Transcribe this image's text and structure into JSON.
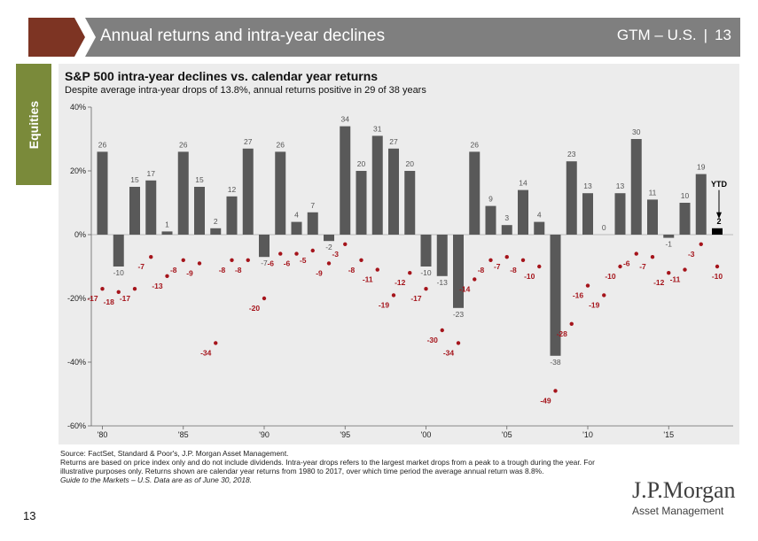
{
  "header": {
    "title": "Annual returns and intra-year declines",
    "code": "GTM – U.S.",
    "separator": "|",
    "page": "13"
  },
  "side_tab": {
    "label": "Equities"
  },
  "colors": {
    "bar": "#595959",
    "drawdown": "#a5141b",
    "header_bg": "#7f7f7f",
    "header_accent": "#7d3423",
    "tab": "#7a8a3a",
    "panel": "#ececec"
  },
  "chart_data": {
    "type": "bar",
    "title": "S&P 500 intra-year declines vs. calendar year returns",
    "subtitle": "Despite average intra-year drops of 13.8%, annual returns positive in 29 of 38 years",
    "years": [
      1980,
      1981,
      1982,
      1983,
      1984,
      1985,
      1986,
      1987,
      1988,
      1989,
      1990,
      1991,
      1992,
      1993,
      1994,
      1995,
      1996,
      1997,
      1998,
      1999,
      2000,
      2001,
      2002,
      2003,
      2004,
      2005,
      2006,
      2007,
      2008,
      2009,
      2010,
      2011,
      2012,
      2013,
      2014,
      2015,
      2016,
      2017
    ],
    "series": [
      {
        "name": "Calendar year return",
        "values": [
          26,
          -10,
          15,
          17,
          1,
          26,
          15,
          2,
          12,
          27,
          -7,
          26,
          4,
          7,
          -2,
          34,
          20,
          31,
          27,
          20,
          -10,
          -13,
          -23,
          26,
          9,
          3,
          14,
          4,
          -38,
          23,
          13,
          0,
          13,
          30,
          11,
          -1,
          10,
          19
        ]
      },
      {
        "name": "Intra-year decline",
        "values": [
          -17,
          -18,
          -17,
          -7,
          -13,
          -8,
          -9,
          -34,
          -8,
          -8,
          -20,
          -6,
          -6,
          -5,
          -9,
          -3,
          -8,
          -11,
          -19,
          -12,
          -17,
          -30,
          -34,
          -14,
          -8,
          -7,
          -8,
          -10,
          -49,
          -28,
          -16,
          -19,
          -10,
          -6,
          -7,
          -12,
          -11,
          -3
        ]
      }
    ],
    "ytd": {
      "label": "YTD",
      "return": 2,
      "decline": -10
    },
    "x_tick_labels": [
      "'80",
      "'85",
      "'90",
      "'95",
      "'00",
      "'05",
      "'10",
      "'15"
    ],
    "y_tick_labels": [
      "40%",
      "20%",
      "0%",
      "-20%",
      "-40%",
      "-60%"
    ],
    "ylim": [
      -60,
      40
    ],
    "xlabel": "",
    "ylabel": ""
  },
  "footnote": {
    "source": "Source: FactSet, Standard & Poor's, J.P. Morgan Asset Management.",
    "notes": "Returns are based on price index only and do not include dividends. Intra-year drops refers to the largest market drops from a peak to a trough during the year. For illustrative purposes only. Returns shown are calendar year returns from 1980 to 2017, over which time period the average annual return was 8.8%.",
    "guide": "Guide to the Markets – U.S. Data are as of June 30, 2018."
  },
  "logo": {
    "main": "J.P.Morgan",
    "sub": "Asset Management"
  },
  "page_number": "13"
}
